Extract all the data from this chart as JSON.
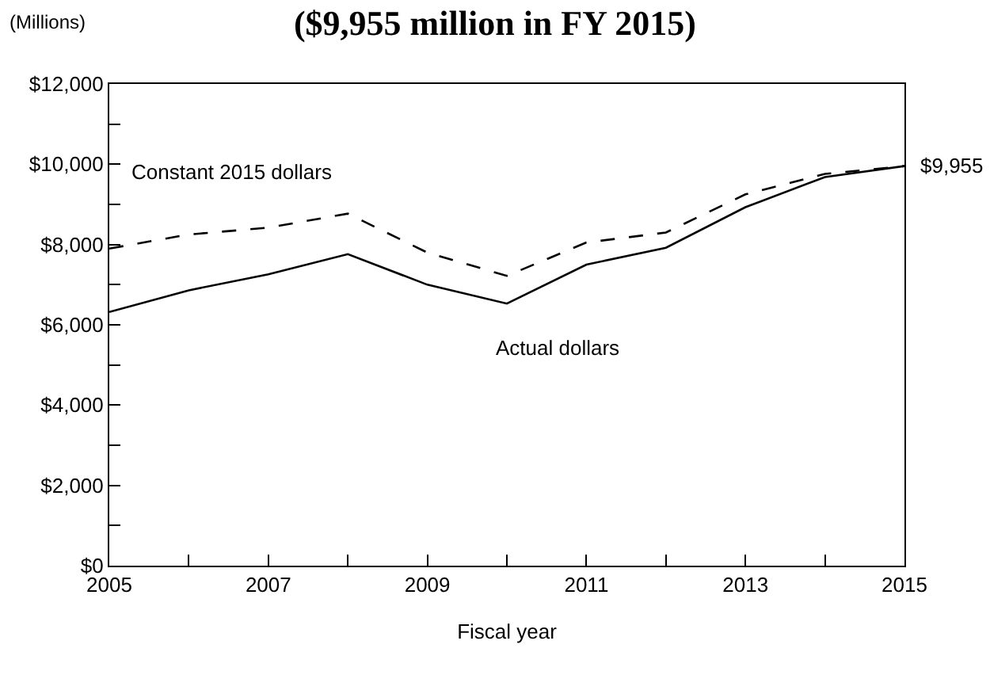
{
  "chart_data": {
    "type": "line",
    "title": "($9,955 million in FY 2015)",
    "ylabel": "(Millions)",
    "xlabel": "Fiscal year",
    "x": [
      2005,
      2006,
      2007,
      2008,
      2009,
      2010,
      2011,
      2012,
      2013,
      2014,
      2015
    ],
    "series": [
      {
        "name": "Constant 2015 dollars",
        "color": "#000000",
        "line_style": "dashed",
        "values": [
          7900,
          8250,
          8420,
          8770,
          7800,
          7220,
          8050,
          8300,
          9250,
          9760,
          9955
        ]
      },
      {
        "name": "Actual dollars",
        "color": "#000000",
        "line_style": "solid",
        "values": [
          6320,
          6860,
          7260,
          7760,
          7000,
          6530,
          7500,
          7920,
          8930,
          9680,
          9955
        ]
      }
    ],
    "xlim": [
      2005,
      2015
    ],
    "xticks": [
      2005,
      {
        "value": 2006,
        "label": null
      },
      2007,
      {
        "value": 2008,
        "label": null
      },
      2009,
      {
        "value": 2010,
        "label": null
      },
      2011,
      {
        "value": 2012,
        "label": null
      },
      2013,
      {
        "value": 2014,
        "label": null
      },
      2015
    ],
    "ylim": [
      0,
      12000
    ],
    "yticks": [
      {
        "value": 0,
        "label": "$0"
      },
      {
        "value": 1000,
        "label": null
      },
      {
        "value": 2000,
        "label": "$2,000"
      },
      {
        "value": 3000,
        "label": null
      },
      {
        "value": 4000,
        "label": "$4,000"
      },
      {
        "value": 5000,
        "label": null
      },
      {
        "value": 6000,
        "label": "$6,000"
      },
      {
        "value": 7000,
        "label": null
      },
      {
        "value": 8000,
        "label": "$8,000"
      },
      {
        "value": 9000,
        "label": null
      },
      {
        "value": 10000,
        "label": "$10,000"
      },
      {
        "value": 11000,
        "label": null
      },
      {
        "value": 12000,
        "label": "$12,000"
      }
    ],
    "annotations": [
      {
        "text": "$9,955",
        "x": 2015,
        "y": 9955
      }
    ],
    "grid": false,
    "legend": false,
    "marker": "none"
  }
}
